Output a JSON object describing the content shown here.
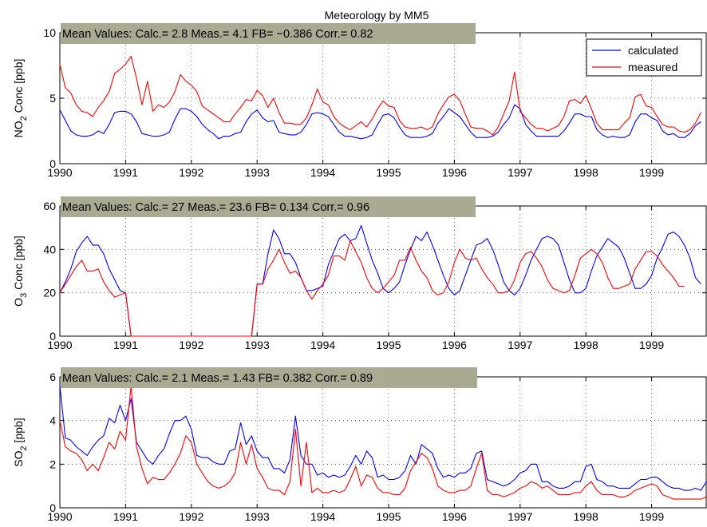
{
  "figure_title": "Meteorology by MM5",
  "x_tick_labels": [
    "1990",
    "1991",
    "1992",
    "1993",
    "1994",
    "1995",
    "1996",
    "1997",
    "1998",
    "1999"
  ],
  "legend": {
    "calculated": "calculated",
    "measured": "measured"
  },
  "colors": {
    "calculated": "#0000ff",
    "measured": "#ff0000",
    "stats_box": "#aaa992"
  },
  "chart_data": [
    {
      "type": "line",
      "title": "Meteorology by MM5",
      "ylabel_main": "NO",
      "ylabel_sub": "2",
      "ylabel_rest": " Conc [ppb]",
      "stats": "Mean Values: Calc.= 2.8  Meas.= 4.1  FB= −0.386  Corr.= 0.82",
      "ylim": [
        0,
        10
      ],
      "yticks": [
        "0",
        "5",
        "10"
      ],
      "xlim": [
        1990,
        1999.83
      ],
      "legend_visible": true,
      "legend_position": "top-right",
      "grid": true,
      "series": [
        {
          "name": "calculated",
          "values": [
            4.1,
            3.3,
            2.5,
            2.2,
            2.1,
            2.1,
            2.2,
            2.5,
            2.3,
            3.0,
            3.9,
            4.0,
            4.0,
            3.8,
            3.2,
            2.3,
            2.2,
            2.1,
            2.1,
            2.2,
            2.4,
            3.4,
            4.2,
            4.2,
            4.0,
            3.6,
            3.0,
            2.6,
            2.3,
            1.9,
            2.1,
            2.1,
            2.3,
            2.4,
            3.2,
            3.8,
            4.1,
            3.5,
            3.2,
            3.3,
            2.4,
            2.3,
            2.2,
            2.2,
            2.4,
            3.0,
            3.8,
            3.9,
            3.8,
            3.6,
            3.0,
            2.4,
            2.1,
            2.1,
            2.0,
            1.9,
            2.0,
            2.2,
            3.0,
            3.7,
            3.8,
            3.5,
            2.8,
            2.2,
            2.0,
            2.0,
            2.0,
            2.1,
            2.3,
            3.1,
            3.6,
            4.2,
            3.9,
            3.6,
            3.0,
            2.4,
            2.0,
            2.0,
            2.0,
            2.1,
            2.4,
            3.0,
            3.5,
            4.5,
            4.2,
            3.0,
            2.5,
            2.1,
            2.1,
            2.1,
            2.1,
            2.1,
            2.5,
            3.1,
            3.8,
            3.8,
            3.6,
            3.6,
            2.6,
            2.2,
            2.0,
            2.1,
            2.0,
            2.0,
            2.2,
            3.2,
            3.8,
            3.8,
            3.5,
            3.3,
            2.5,
            2.2,
            2.3,
            2.0,
            2.0,
            2.3,
            2.9,
            3.2
          ]
        },
        {
          "name": "measured",
          "values": [
            7.6,
            5.8,
            5.4,
            4.5,
            4.0,
            3.9,
            3.6,
            4.3,
            4.8,
            5.5,
            6.9,
            7.2,
            7.6,
            8.2,
            6.5,
            4.5,
            6.3,
            4.0,
            4.5,
            4.3,
            4.7,
            5.5,
            6.8,
            6.3,
            6.0,
            5.5,
            4.4,
            4.1,
            3.8,
            3.5,
            3.2,
            3.2,
            3.8,
            4.3,
            4.9,
            4.8,
            5.6,
            5.2,
            4.3,
            5.0,
            3.9,
            3.1,
            3.1,
            3.0,
            3.0,
            3.5,
            4.5,
            5.7,
            4.7,
            4.5,
            3.6,
            3.1,
            2.8,
            2.6,
            2.9,
            3.2,
            2.8,
            3.4,
            4.2,
            4.8,
            4.4,
            4.3,
            3.3,
            2.8,
            2.7,
            2.7,
            2.8,
            2.6,
            2.8,
            3.8,
            4.5,
            5.1,
            5.3,
            4.8,
            3.8,
            2.8,
            2.7,
            2.7,
            2.5,
            2.2,
            2.8,
            3.8,
            4.8,
            7.0,
            4.0,
            3.5,
            3.0,
            2.7,
            2.7,
            2.5,
            2.7,
            2.9,
            3.6,
            4.8,
            4.9,
            4.6,
            5.2,
            4.2,
            3.1,
            2.6,
            2.6,
            2.6,
            2.6,
            3.1,
            3.5,
            5.1,
            5.3,
            4.4,
            4.3,
            3.6,
            3.0,
            2.8,
            2.8,
            2.5,
            2.4,
            2.6,
            3.1,
            3.9
          ]
        }
      ]
    },
    {
      "type": "line",
      "ylabel_main": "O",
      "ylabel_sub": "3",
      "ylabel_rest": " Conc [ppb]",
      "stats": "Mean Values: Calc.= 27  Meas.= 23.6  FB= 0.134  Corr.= 0.96",
      "ylim": [
        0,
        60
      ],
      "yticks": [
        "0",
        "20",
        "40",
        "60"
      ],
      "xlim": [
        1990,
        1999.83
      ],
      "legend_visible": false,
      "grid": true,
      "series": [
        {
          "name": "calculated",
          "values": [
            20,
            25,
            31,
            39,
            43,
            46,
            42,
            42,
            38,
            31,
            26,
            21,
            20,
            0,
            0,
            0,
            0,
            0,
            0,
            0,
            0,
            0,
            0,
            0,
            0,
            0,
            0,
            0,
            0,
            0,
            0,
            0,
            0,
            0,
            0,
            0,
            24,
            24,
            38,
            49,
            45,
            38,
            38,
            34,
            27,
            21,
            21,
            22,
            23,
            33,
            39,
            45,
            47,
            44,
            45,
            51,
            43,
            35,
            29,
            22,
            20,
            22,
            25,
            33,
            40,
            46,
            44,
            48,
            42,
            35,
            28,
            22,
            19,
            21,
            28,
            35,
            42,
            43,
            45,
            40,
            33,
            25,
            21,
            19,
            22,
            28,
            35,
            40,
            45,
            46,
            45,
            42,
            34,
            26,
            20,
            20,
            22,
            30,
            37,
            41,
            45,
            43,
            41,
            36,
            29,
            22,
            22,
            24,
            28,
            36,
            41,
            47,
            48,
            46,
            42,
            36,
            27,
            24
          ]
        },
        {
          "name": "measured",
          "values": [
            20,
            24,
            28,
            32,
            35,
            30,
            30,
            31,
            25,
            21,
            18,
            19,
            20,
            0,
            0,
            0,
            0,
            0,
            0,
            0,
            0,
            0,
            0,
            0,
            0,
            0,
            0,
            0,
            0,
            0,
            0,
            0,
            0,
            0,
            0,
            0,
            24,
            24,
            31,
            35,
            40,
            34,
            29,
            30,
            27,
            21,
            17,
            21,
            24,
            28,
            37,
            37,
            35,
            44,
            39,
            34,
            27,
            22,
            20,
            22,
            25,
            28,
            35,
            35,
            41,
            35,
            30,
            27,
            21,
            19,
            20,
            25,
            34,
            40,
            36,
            35,
            36,
            31,
            27,
            24,
            20,
            20,
            21,
            26,
            34,
            38,
            39,
            36,
            32,
            26,
            22,
            21,
            20,
            21,
            28,
            36,
            38,
            40,
            38,
            34,
            27,
            22,
            22,
            23,
            24,
            31,
            35,
            39,
            39,
            37,
            33,
            30,
            27,
            23,
            23
          ]
        }
      ]
    },
    {
      "type": "line",
      "ylabel_main": "SO",
      "ylabel_sub": "2",
      "ylabel_rest": " [ppb]",
      "stats": "Mean Values: Calc.= 2.1  Meas.= 1.43  FB= 0.382  Corr.= 0.89",
      "ylim": [
        0,
        6
      ],
      "yticks": [
        "0",
        "2",
        "4",
        "6"
      ],
      "xlim": [
        1990,
        1999.83
      ],
      "legend_visible": false,
      "grid": true,
      "series": [
        {
          "name": "calculated",
          "values": [
            5.6,
            3.2,
            3.1,
            2.8,
            2.6,
            2.4,
            2.8,
            3.1,
            3.3,
            4.1,
            3.9,
            4.7,
            4.0,
            5.0,
            3.0,
            2.6,
            2.2,
            2.0,
            2.4,
            2.7,
            3.4,
            4.0,
            4.0,
            4.2,
            3.6,
            2.4,
            2.3,
            2.3,
            2.1,
            2.0,
            2.0,
            2.6,
            2.7,
            3.9,
            2.9,
            3.3,
            2.6,
            2.3,
            2.3,
            1.8,
            1.8,
            1.6,
            2.2,
            4.2,
            2.4,
            2.0,
            2.0,
            1.5,
            1.6,
            1.4,
            1.5,
            1.4,
            1.5,
            1.9,
            2.4,
            2.0,
            2.6,
            2.3,
            1.4,
            1.5,
            1.3,
            1.3,
            1.4,
            1.7,
            2.4,
            2.0,
            2.9,
            2.7,
            2.5,
            1.8,
            1.4,
            1.5,
            1.4,
            1.6,
            1.6,
            1.8,
            2.5,
            2.6,
            1.3,
            1.2,
            1.1,
            1.0,
            1.1,
            1.3,
            1.6,
            1.7,
            2.0,
            2.0,
            1.2,
            1.2,
            1.0,
            0.9,
            0.9,
            1.0,
            1.2,
            1.2,
            1.9,
            2.0,
            1.3,
            1.2,
            1.0,
            1.0,
            0.9,
            0.9,
            0.9,
            1.1,
            1.3,
            1.3,
            1.4,
            1.4,
            1.2,
            1.0,
            0.9,
            0.9,
            0.8,
            0.8,
            0.9,
            0.8,
            1.2,
            1.3
          ]
        },
        {
          "name": "measured",
          "values": [
            4.0,
            2.8,
            2.6,
            2.5,
            2.2,
            1.7,
            2.0,
            1.7,
            2.3,
            3.0,
            2.7,
            3.5,
            3.1,
            5.6,
            2.8,
            1.8,
            1.1,
            1.4,
            1.3,
            1.3,
            1.6,
            2.0,
            2.5,
            3.3,
            3.0,
            2.0,
            1.6,
            1.2,
            1.0,
            0.9,
            1.0,
            1.2,
            1.6,
            3.0,
            2.0,
            2.9,
            1.8,
            1.4,
            0.9,
            0.8,
            0.8,
            0.6,
            1.2,
            3.6,
            1.0,
            3.0,
            0.7,
            0.9,
            0.7,
            0.7,
            0.8,
            0.7,
            0.8,
            1.3,
            1.9,
            1.0,
            1.5,
            1.4,
            0.9,
            0.7,
            0.7,
            0.6,
            0.6,
            0.9,
            1.7,
            2.1,
            2.5,
            2.3,
            1.8,
            1.0,
            0.8,
            0.7,
            0.7,
            0.8,
            0.8,
            1.0,
            1.8,
            2.5,
            0.8,
            0.6,
            0.6,
            0.5,
            0.6,
            0.7,
            0.9,
            1.0,
            1.2,
            1.1,
            0.9,
            1.0,
            0.8,
            0.6,
            0.6,
            0.6,
            0.7,
            0.7,
            1.0,
            1.2,
            0.8,
            0.6,
            0.6,
            0.6,
            0.5,
            0.5,
            0.6,
            0.8,
            0.9,
            1.0,
            1.1,
            1.0,
            0.6,
            0.5,
            0.4,
            0.4,
            0.4,
            0.4,
            0.4,
            0.4,
            0.5,
            0.5
          ]
        }
      ]
    }
  ]
}
